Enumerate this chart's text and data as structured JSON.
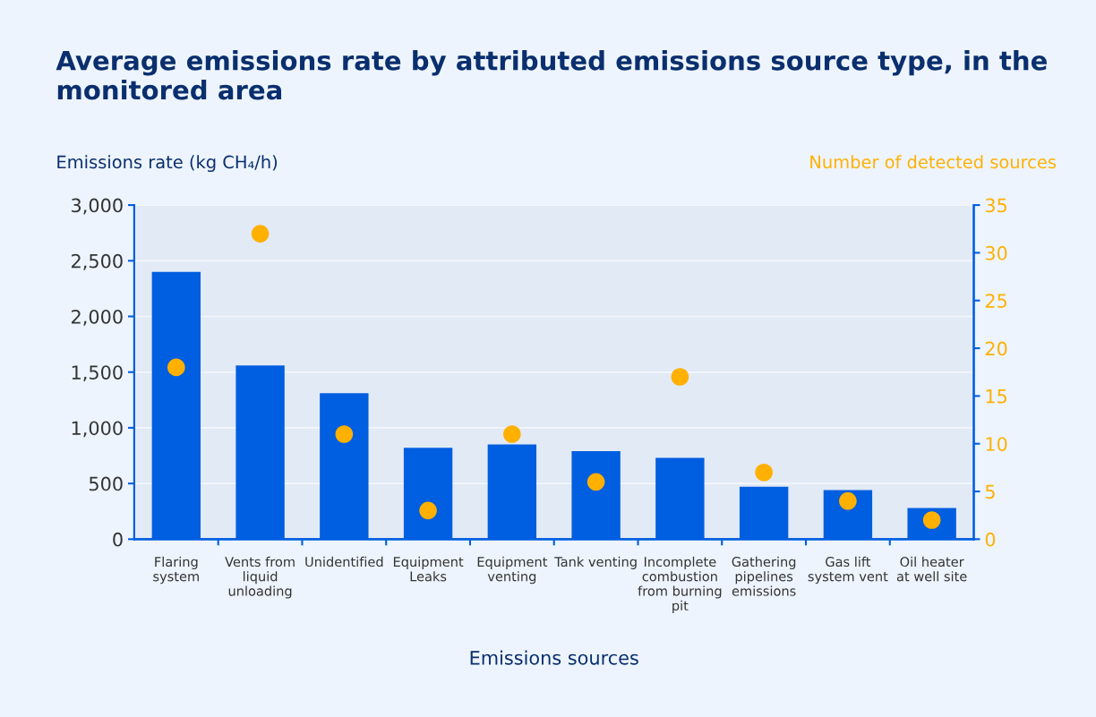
{
  "chart_data": {
    "type": "bar",
    "title": "Average emissions rate by attributed emissions source type, in the monitored area",
    "xlabel": "Emissions sources",
    "ylabel": "Emissions rate (kg CH₄/h)",
    "y2label": "Number of detected sources",
    "categories": [
      "Flaring system",
      "Vents from liquid unloading",
      "Unidentified",
      "Equipment Leaks",
      "Equipment venting",
      "Tank venting",
      "Incomplete combustion from burning pit",
      "Gathering pipelines emissions",
      "Gas lift system vent",
      "Oil heater at well site"
    ],
    "series": [
      {
        "color": "#005ee0",
        "values": [
          2400,
          1560,
          1310,
          820,
          850,
          790,
          730,
          470,
          440,
          280
        ]
      },
      {
        "type": "scatter",
        "axis": "y2",
        "color": "#ffb000",
        "values": [
          18,
          32,
          11,
          3,
          11,
          6,
          17,
          7,
          4,
          2
        ]
      }
    ],
    "ylim": [
      0,
      3000
    ],
    "yticks": [
      {
        "value": 0,
        "label": "0"
      },
      {
        "value": 500,
        "label": "500"
      },
      {
        "value": 1000,
        "label": "1,000"
      },
      {
        "value": 1500,
        "label": "1,500"
      },
      {
        "value": 2000,
        "label": "2,000"
      },
      {
        "value": 2500,
        "label": "2,500"
      },
      {
        "value": 3000,
        "label": "3,000"
      }
    ],
    "y2lim": [
      0,
      35
    ],
    "y2ticks": [
      0,
      5,
      10,
      15,
      20,
      25,
      30,
      35
    ],
    "grid": "y",
    "marker": "circle"
  }
}
